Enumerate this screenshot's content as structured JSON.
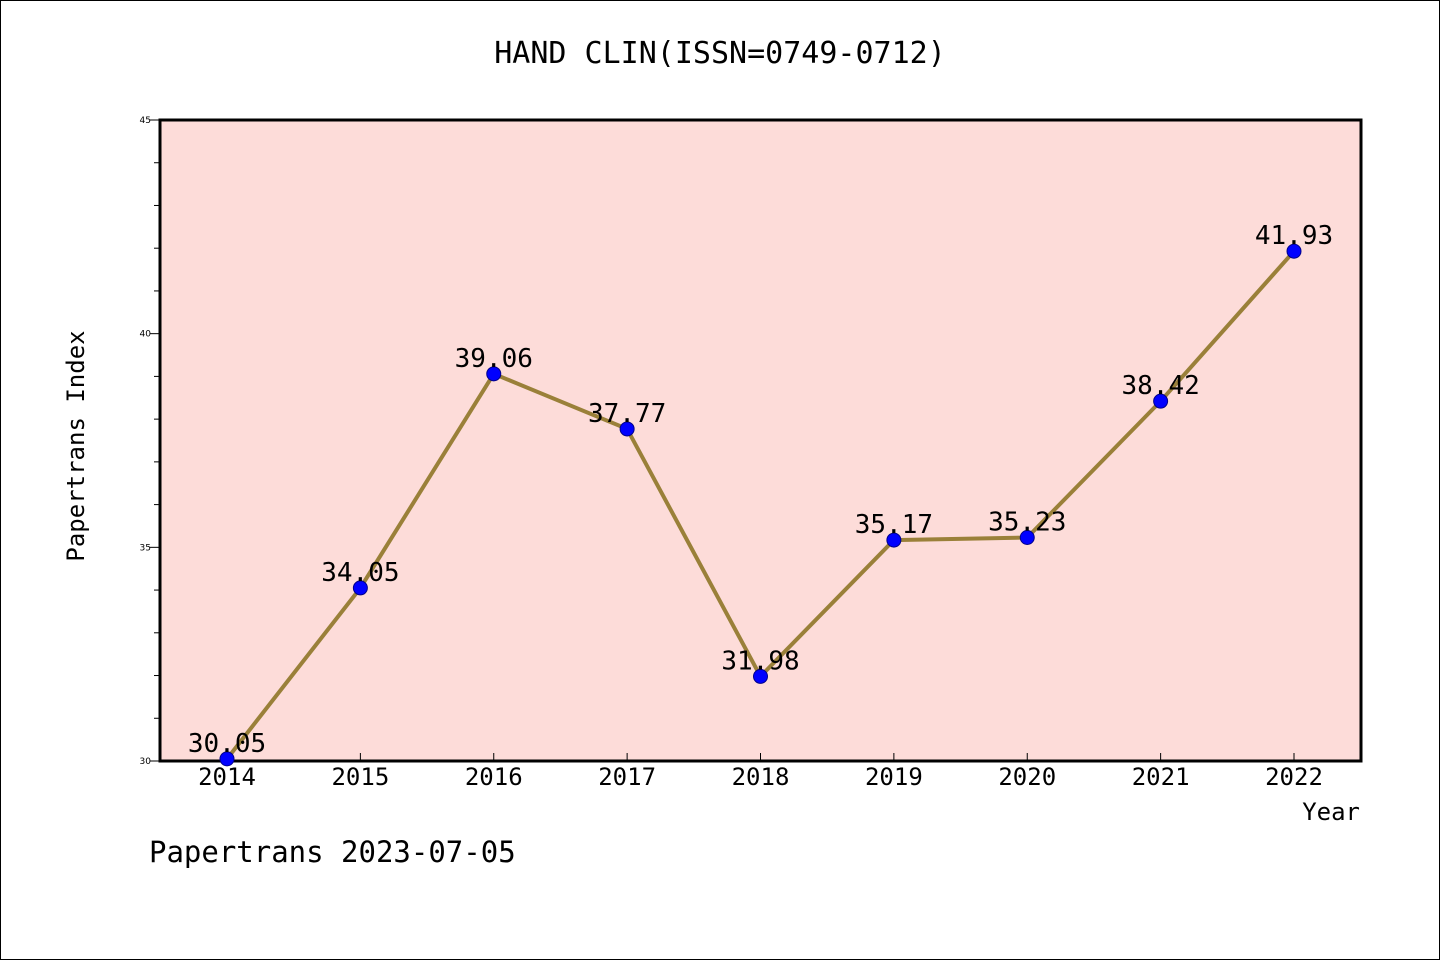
{
  "chart_data": {
    "type": "line",
    "title": "HAND CLIN(ISSN=0749-0712)",
    "xlabel": "Year",
    "ylabel": "Papertrans Index",
    "categories": [
      "2014",
      "2015",
      "2016",
      "2017",
      "2018",
      "2019",
      "2020",
      "2021",
      "2022"
    ],
    "series": [
      {
        "values": [
          30.05,
          34.05,
          39.06,
          37.77,
          31.98,
          35.17,
          35.23,
          38.42,
          41.93
        ]
      }
    ],
    "data_labels": [
      "30.05",
      "34.05",
      "39.06",
      "37.77",
      "31.98",
      "35.17",
      "35.23",
      "38.42",
      "41.93"
    ],
    "ylim": [
      30,
      45
    ],
    "y_ticks": [
      "30",
      "35",
      "40",
      "45"
    ],
    "grid": false,
    "colors": {
      "plot_background": "#fddcd9",
      "line": "#9a8039",
      "marker": "#0000ff"
    }
  },
  "footer": {
    "watermark": "Papertrans 2023-07-05"
  }
}
